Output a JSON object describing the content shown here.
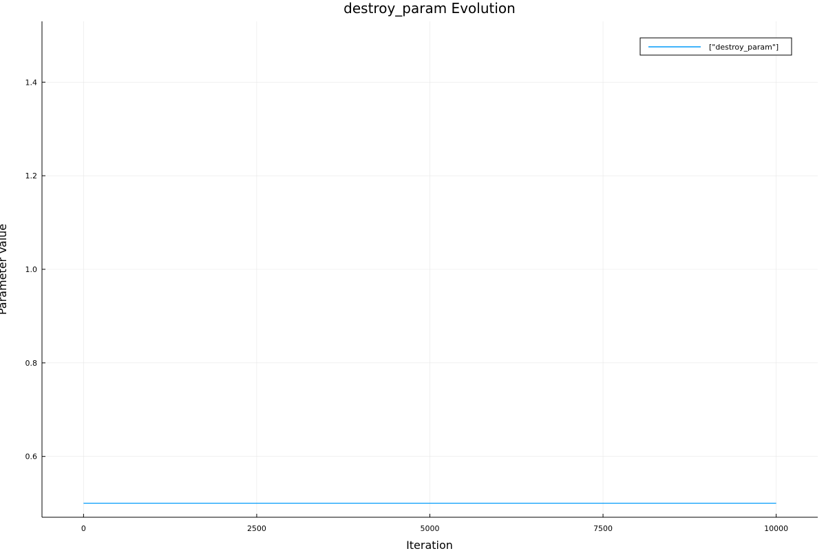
{
  "chart_data": {
    "type": "line",
    "title": "destroy_param Evolution",
    "xlabel": "Iteration",
    "ylabel": "Parameter Value",
    "xlim": [
      -600,
      10600
    ],
    "ylim": [
      0.47,
      1.53
    ],
    "x_ticks": [
      0,
      2500,
      5000,
      7500,
      10000
    ],
    "x_tick_labels": [
      "0",
      "2500",
      "5000",
      "7500",
      "10000"
    ],
    "y_ticks": [
      0.6,
      0.8,
      1.0,
      1.2,
      1.4
    ],
    "y_tick_labels": [
      "0.6",
      "0.8",
      "1.0",
      "1.2",
      "1.4"
    ],
    "grid": true,
    "legend_position": "top-right",
    "series": [
      {
        "name": "[\"destroy_param\"]",
        "color": "#009AFA",
        "x": [
          0,
          10000
        ],
        "y": [
          0.5,
          0.5
        ]
      }
    ]
  }
}
